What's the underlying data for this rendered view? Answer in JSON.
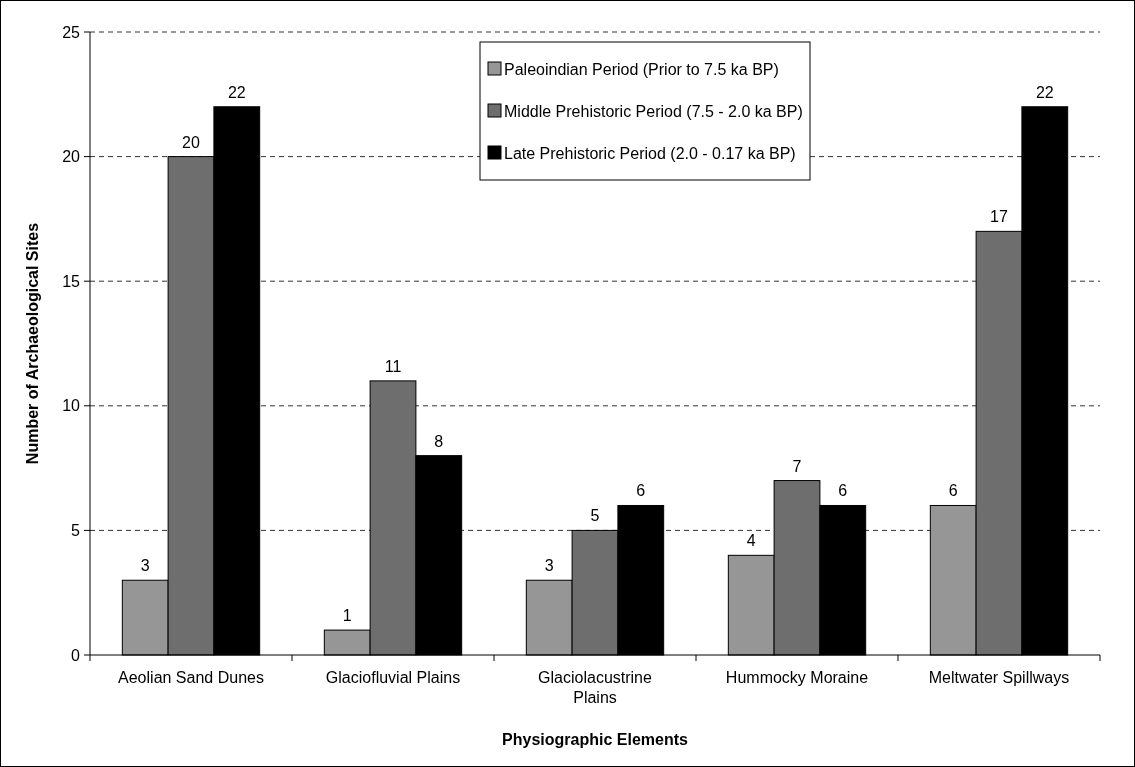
{
  "chart_data": {
    "type": "bar",
    "xlabel": "Physiographic Elements",
    "ylabel": "Number of Archaeological Sites",
    "categories": [
      "Aeolian Sand Dunes",
      "Glaciofluvial Plains",
      "Glaciolacustrine Plains",
      "Hummocky Moraine",
      "Meltwater Spillways"
    ],
    "series": [
      {
        "name": "Paleoindian Period (Prior to 7.5 ka BP)",
        "color": "#969696",
        "values": [
          3,
          1,
          3,
          4,
          6
        ]
      },
      {
        "name": "Middle Prehistoric Period (7.5 - 2.0 ka BP)",
        "color": "#6e6e6e",
        "values": [
          20,
          11,
          5,
          7,
          17
        ]
      },
      {
        "name": "Late Prehistoric Period (2.0 - 0.17 ka BP)",
        "color": "#000000",
        "values": [
          22,
          8,
          6,
          6,
          22
        ]
      }
    ],
    "ylim": [
      0,
      25
    ],
    "yticks": [
      0,
      5,
      10,
      15,
      20,
      25
    ],
    "grid": "y",
    "legend": "top right",
    "data_labels": true
  }
}
